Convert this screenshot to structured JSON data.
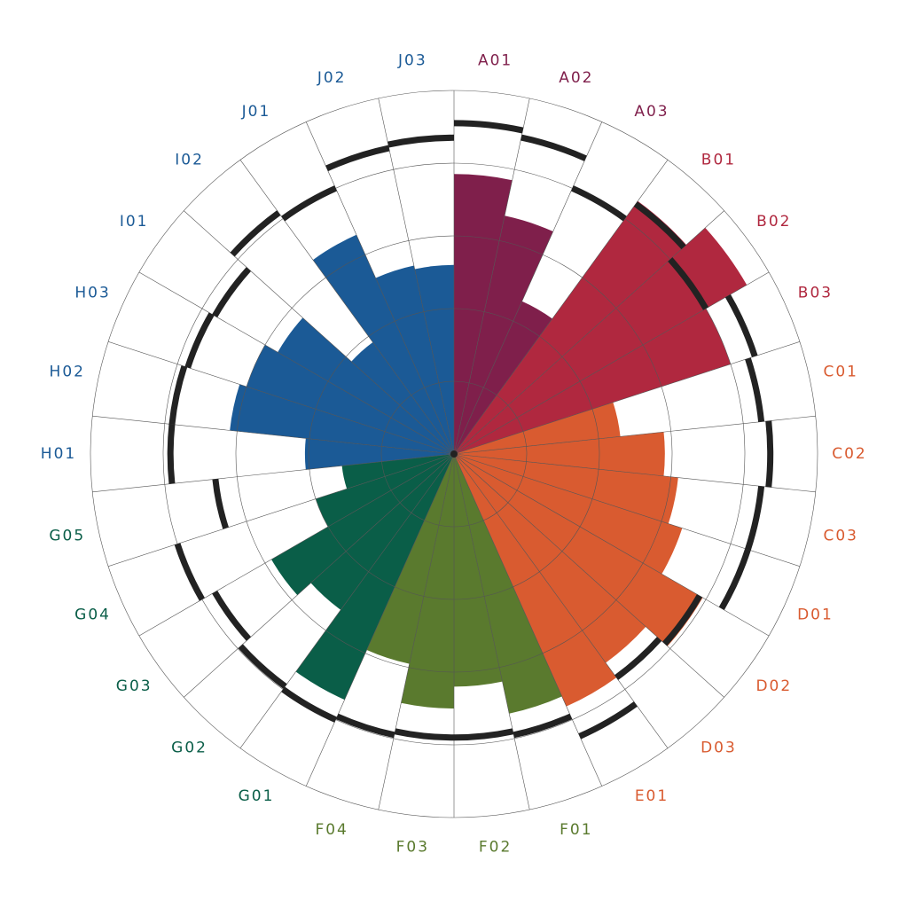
{
  "chart_data": {
    "type": "polar-bar",
    "categories": [
      "A01",
      "A02",
      "A03",
      "B01",
      "B02",
      "B03",
      "C01",
      "C02",
      "C03",
      "D01",
      "D02",
      "D03",
      "E01",
      "F01",
      "F02",
      "F03",
      "F04",
      "G01",
      "G02",
      "G03",
      "G04",
      "G05",
      "H01",
      "H02",
      "H03",
      "I01",
      "I02",
      "J01",
      "J02",
      "J03"
    ],
    "values": [
      77,
      67,
      46,
      86,
      93,
      80,
      46,
      58,
      62,
      66,
      79,
      71,
      76,
      73,
      64,
      70,
      59,
      74,
      53,
      58,
      40,
      31,
      41,
      62,
      60,
      56,
      38,
      66,
      53,
      52
    ],
    "targets": [
      91,
      89,
      80,
      85,
      80,
      87,
      85,
      87,
      85,
      85,
      78,
      76,
      85,
      79,
      78,
      78,
      79,
      80,
      79,
      76,
      80,
      66,
      78,
      78,
      77,
      76,
      82,
      80,
      86,
      87
    ],
    "colors": [
      "#7f1f4b",
      "#7f1f4b",
      "#7f1f4b",
      "#b0283f",
      "#b0283f",
      "#b0283f",
      "#d95b30",
      "#d95b30",
      "#d95b30",
      "#d95b30",
      "#d95b30",
      "#d95b30",
      "#d95b30",
      "#5a7a2e",
      "#5a7a2e",
      "#5a7a2e",
      "#5a7a2e",
      "#0a5e48",
      "#0a5e48",
      "#0a5e48",
      "#0a5e48",
      "#0a5e48",
      "#1b5a96",
      "#1b5a96",
      "#1b5a96",
      "#1b5a96",
      "#1b5a96",
      "#1b5a96",
      "#1b5a96",
      "#1b5a96"
    ],
    "rlim": [
      0,
      100
    ],
    "rticks": [
      20,
      40,
      60,
      80,
      100
    ],
    "grid": true
  }
}
